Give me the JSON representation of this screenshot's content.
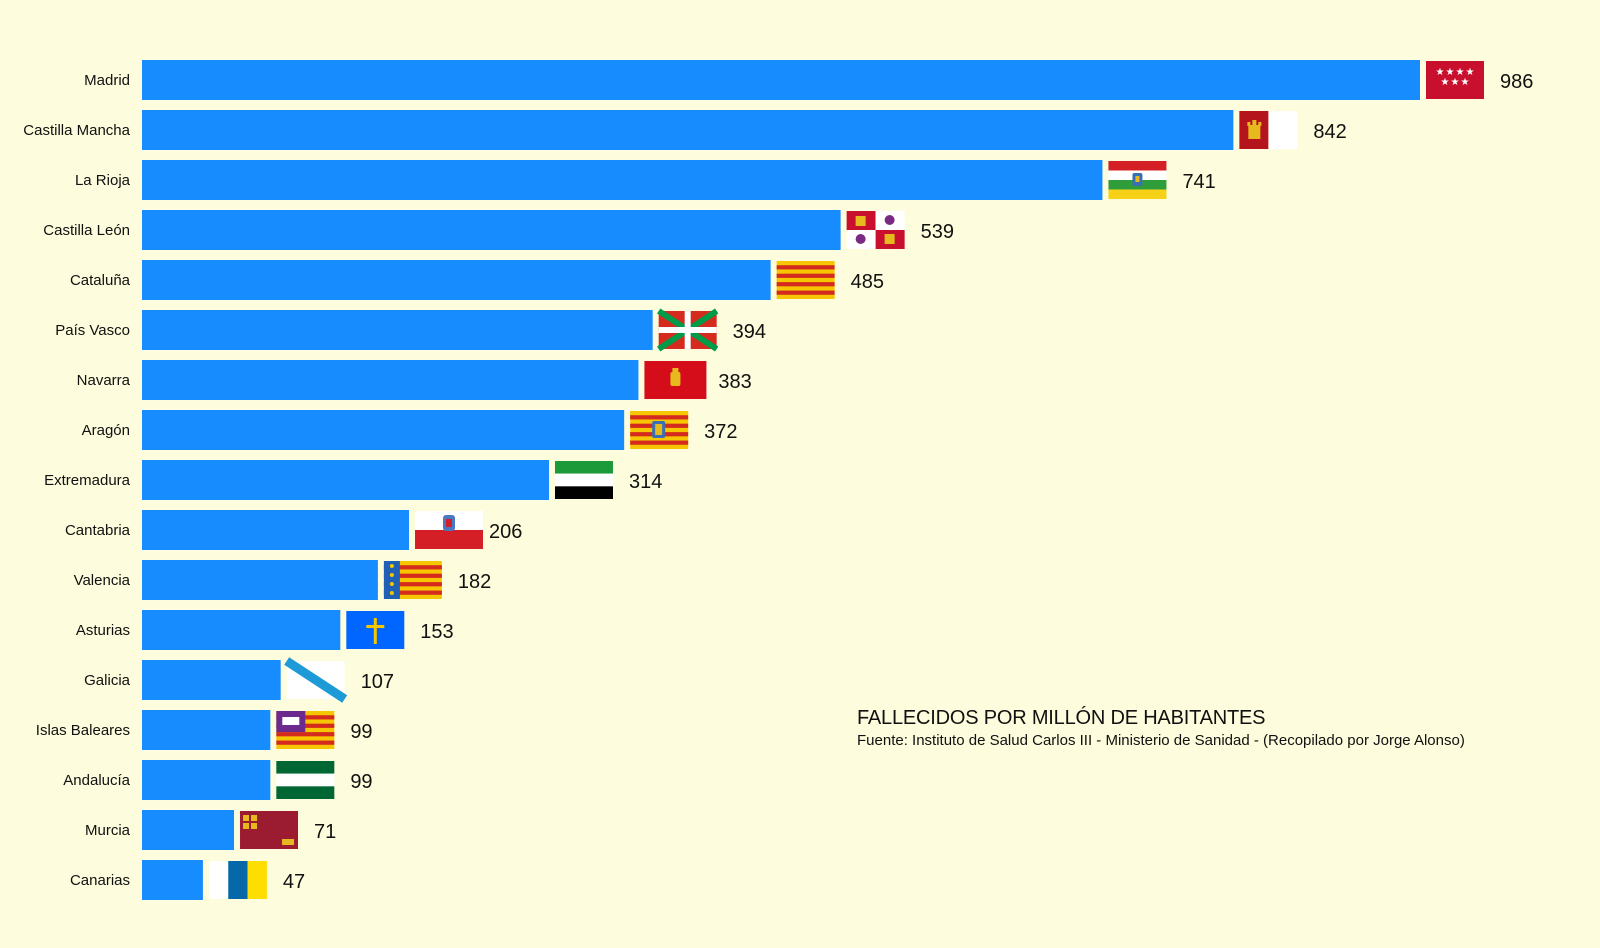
{
  "colors": {
    "background": "#fdfcdc",
    "bar": "#168cff",
    "text": "#111111"
  },
  "chart_data": {
    "type": "bar",
    "orientation": "horizontal",
    "title": "FALLECIDOS POR MILLÓN DE HABITANTES",
    "subtitle": "Fuente: Instituto de Salud Carlos III - Ministerio de Sanidad - (Recopilado por Jorge Alonso)",
    "xlabel": "",
    "ylabel": "",
    "xlim": [
      0,
      986
    ],
    "grid": false,
    "categories": [
      "Madrid",
      "Castilla Mancha",
      "La Rioja",
      "Castilla León",
      "Cataluña",
      "País Vasco",
      "Navarra",
      "Aragón",
      "Extremadura",
      "Cantabria",
      "Valencia",
      "Asturias",
      "Galicia",
      "Islas Baleares",
      "Andalucía",
      "Murcia",
      "Canarias"
    ],
    "values": [
      986,
      842,
      741,
      539,
      485,
      394,
      383,
      372,
      314,
      206,
      182,
      153,
      107,
      99,
      99,
      71,
      47
    ],
    "value_labels": [
      "986",
      "842",
      "741",
      "539",
      "485",
      "394",
      "383",
      "372",
      "314",
      "206",
      "182",
      "153",
      "107",
      "99",
      "99",
      "71",
      "47"
    ],
    "flag_icons": [
      "madrid-flag-icon",
      "castilla-la-mancha-flag-icon",
      "la-rioja-flag-icon",
      "castilla-leon-flag-icon",
      "cataluna-flag-icon",
      "pais-vasco-flag-icon",
      "navarra-flag-icon",
      "aragon-flag-icon",
      "extremadura-flag-icon",
      "cantabria-flag-icon",
      "valencia-flag-icon",
      "asturias-flag-icon",
      "galicia-flag-icon",
      "islas-baleares-flag-icon",
      "andalucia-flag-icon",
      "murcia-flag-icon",
      "canarias-flag-icon"
    ]
  }
}
